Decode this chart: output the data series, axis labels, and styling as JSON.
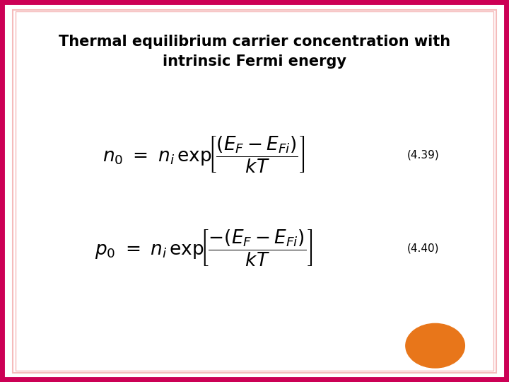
{
  "title_line1": "Thermal equilibrium carrier concentration with",
  "title_line2": "intrinsic Fermi energy",
  "eq1_label": "(4.39)",
  "eq2_label": "(4.40)",
  "bg_color": "#FFFFFF",
  "border_outer_color": "#CC0055",
  "border_inner_color": "#F5BBBB",
  "title_color": "#000000",
  "eq_color": "#000000",
  "label_color": "#000000",
  "circle_color": "#E8761A",
  "title_fontsize": 15,
  "eq_fontsize": 19,
  "label_fontsize": 11,
  "fig_width": 7.2,
  "fig_height": 5.4,
  "fig_dpi": 100
}
